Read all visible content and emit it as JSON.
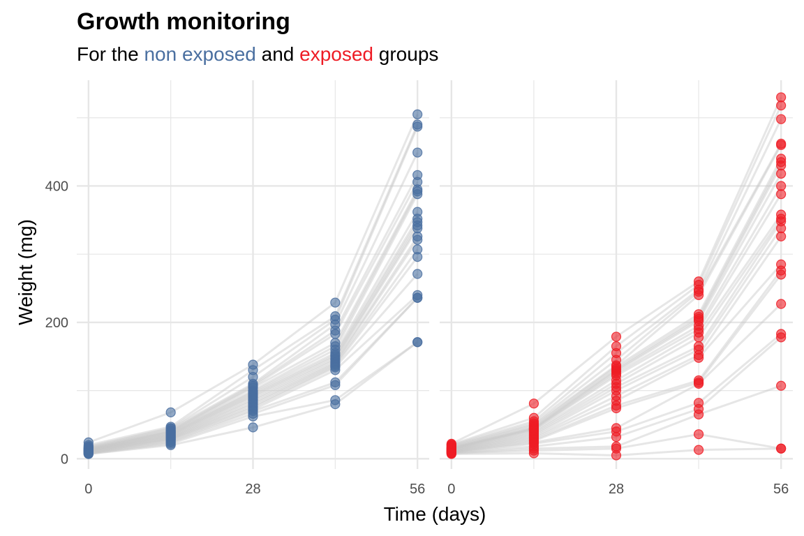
{
  "title": "Growth monitoring",
  "subtitle": {
    "before": "For the ",
    "group1": "non exposed",
    "middle": " and ",
    "group2": "exposed",
    "after": " groups"
  },
  "colors": {
    "non_exposed": "#4a6fa0",
    "exposed": "#ee1c25",
    "trajectory": "#c8c8c8",
    "grid": "#e6e6e6"
  },
  "chart_data": {
    "type": "scatter",
    "facets": [
      "non exposed",
      "exposed"
    ],
    "x": [
      0,
      14,
      28,
      42,
      56
    ],
    "xticks": [
      "0",
      "28",
      "56"
    ],
    "xtick_values": [
      0,
      28,
      56
    ],
    "xlabel": "Time (days)",
    "ylabel": "Weight (mg)",
    "yticks": [
      "0",
      "200",
      "400"
    ],
    "ytick_values": [
      0,
      200,
      400
    ],
    "xlim": [
      -2,
      58
    ],
    "ylim": [
      -15,
      555
    ],
    "grid": true,
    "series": [
      {
        "facet": "non exposed",
        "individuals": [
          [
            24,
            68,
            138,
            229,
            505
          ],
          [
            20,
            47,
            130,
            209,
            490
          ],
          [
            18,
            45,
            120,
            204,
            487
          ],
          [
            17,
            44,
            110,
            197,
            449
          ],
          [
            16,
            42,
            108,
            188,
            416
          ],
          [
            15,
            41,
            106,
            183,
            406
          ],
          [
            15,
            40,
            104,
            170,
            395
          ],
          [
            14,
            39,
            100,
            165,
            392
          ],
          [
            14,
            38,
            98,
            160,
            388
          ],
          [
            13,
            37,
            96,
            155,
            362
          ],
          [
            13,
            36,
            94,
            152,
            352
          ],
          [
            12,
            35,
            92,
            150,
            347
          ],
          [
            12,
            34,
            90,
            147,
            342
          ],
          [
            12,
            33,
            87,
            145,
            338
          ],
          [
            11,
            32,
            85,
            142,
            326
          ],
          [
            11,
            31,
            82,
            140,
            321
          ],
          [
            10,
            30,
            80,
            138,
            307
          ],
          [
            10,
            29,
            77,
            136,
            296
          ],
          [
            9,
            28,
            75,
            134,
            271
          ],
          [
            9,
            27,
            72,
            130,
            240
          ],
          [
            8,
            25,
            70,
            112,
            236
          ],
          [
            8,
            24,
            66,
            108,
            236
          ],
          [
            7,
            22,
            62,
            86,
            171
          ],
          [
            7,
            20,
            46,
            80,
            171
          ]
        ]
      },
      {
        "facet": "exposed",
        "individuals": [
          [
            22,
            81,
            179,
            260,
            530
          ],
          [
            21,
            60,
            165,
            255,
            518
          ],
          [
            20,
            55,
            155,
            248,
            498
          ],
          [
            19,
            52,
            145,
            245,
            462
          ],
          [
            18,
            50,
            137,
            240,
            460
          ],
          [
            17,
            48,
            135,
            212,
            440
          ],
          [
            16,
            46,
            132,
            208,
            435
          ],
          [
            16,
            45,
            130,
            205,
            430
          ],
          [
            15,
            44,
            128,
            202,
            418
          ],
          [
            15,
            43,
            125,
            195,
            400
          ],
          [
            14,
            42,
            122,
            190,
            388
          ],
          [
            14,
            40,
            115,
            185,
            358
          ],
          [
            13,
            38,
            110,
            178,
            352
          ],
          [
            13,
            36,
            105,
            165,
            348
          ],
          [
            12,
            34,
            100,
            160,
            338
          ],
          [
            12,
            32,
            92,
            152,
            326
          ],
          [
            11,
            30,
            85,
            148,
            285
          ],
          [
            11,
            28,
            78,
            115,
            276
          ],
          [
            10,
            26,
            74,
            112,
            270
          ],
          [
            10,
            24,
            45,
            110,
            227
          ],
          [
            9,
            22,
            40,
            82,
            183
          ],
          [
            9,
            18,
            32,
            73,
            178
          ],
          [
            8,
            15,
            18,
            65,
            107
          ],
          [
            8,
            12,
            15,
            36,
            15
          ],
          [
            7,
            8,
            5,
            13,
            15
          ]
        ]
      }
    ]
  }
}
